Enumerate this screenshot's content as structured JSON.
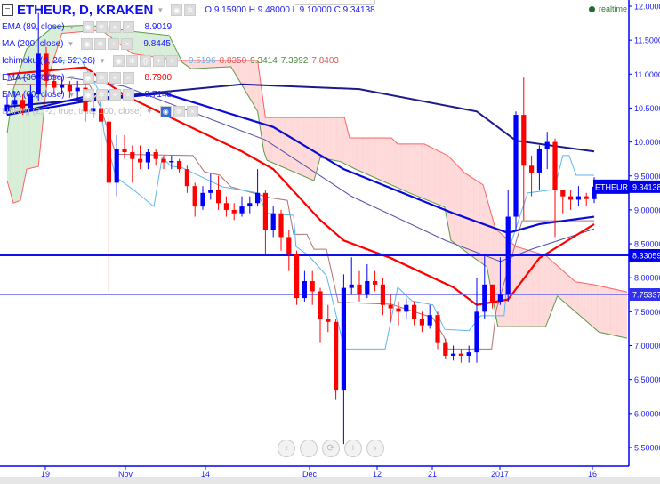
{
  "header": {
    "symbol_title": "ETHEUR, D, KRAKEN",
    "ohlc": "O 9.15900  H 9.48000  L 9.10000  C 9.34138",
    "realtime_label": "realtime"
  },
  "indicators": [
    {
      "label": "EMA (89, close)",
      "value": "8.9019",
      "color": "#1a1acc"
    },
    {
      "label": "MA (200, close)",
      "value": "9.8445",
      "color": "#1a1acc"
    },
    {
      "label": "Ichimoku (9, 26, 52, 26)",
      "values": [
        "9.5196",
        "8.8350",
        "9.3414",
        "7.3992",
        "7.8403"
      ],
      "value_colors": [
        "#5bb6f0",
        "#e05a5a",
        "#4a8a3a",
        "#4a8a3a",
        "#e05a5a"
      ]
    },
    {
      "label": "EMA (30, close)",
      "value": "8.7900",
      "color": "#ff0000"
    },
    {
      "label": "EMA (60, close)",
      "value": "8.7148",
      "color": "#1a1acc"
    },
    {
      "label": "LinReg (2, -2, true, true, 100, close)",
      "value": ""
    }
  ],
  "colors": {
    "up": "#0000ff",
    "down": "#ff0000",
    "axis": "#0000ff",
    "cloud_bull": "#d4ecd4",
    "cloud_bear": "#ffd6d6"
  },
  "y_axis": {
    "ticks": [
      "12.00000",
      "11.50000",
      "11.00000",
      "10.50000",
      "10.00000",
      "9.50000",
      "9.00000",
      "8.50000",
      "8.00000",
      "7.50000",
      "7.00000",
      "6.50000",
      "6.00000",
      "5.50000"
    ]
  },
  "x_axis": {
    "ticks": [
      "19",
      "Nov",
      "14",
      "Dec",
      "12",
      "21",
      "2017",
      "16"
    ]
  },
  "price_labels": [
    {
      "text": "9.34138",
      "tag": "ETHEUR",
      "price": 9.34138
    },
    {
      "text": "8.33059",
      "price": 8.33059
    },
    {
      "text": "7.75337",
      "price": 7.75337
    }
  ],
  "nav_buttons": {
    "left": "‹",
    "zoom_out": "−",
    "reset": "⟳",
    "zoom_in": "+",
    "right": "›"
  },
  "chart_data": {
    "type": "candlestick",
    "ylim": [
      5.3,
      12.1
    ],
    "open": [
      10.45,
      10.55,
      10.62,
      10.5,
      10.7,
      11.3,
      10.9,
      10.8,
      10.85,
      10.75,
      10.8,
      10.45,
      10.5,
      10.3,
      9.4,
      9.9,
      9.85,
      9.75,
      9.7,
      9.85,
      9.75,
      9.7,
      9.72,
      9.6,
      9.35,
      9.05,
      9.25,
      9.3,
      9.1,
      9.0,
      8.95,
      9.05,
      9.1,
      9.25,
      8.7,
      8.95,
      8.6,
      8.35,
      7.7,
      7.95,
      7.8,
      7.4,
      7.35,
      6.35,
      7.85,
      7.9,
      7.75,
      7.95,
      7.9,
      7.6,
      7.55,
      7.5,
      7.6,
      7.4,
      7.3,
      7.45,
      7.05,
      6.85,
      6.88,
      6.85,
      6.9,
      7.5,
      7.9,
      7.65,
      7.75,
      8.9,
      10.4,
      9.65,
      9.55,
      9.9,
      10.0,
      9.3,
      9.2,
      9.15,
      9.2,
      9.159
    ],
    "high": [
      10.7,
      10.75,
      10.7,
      10.85,
      11.9,
      11.4,
      11.0,
      10.95,
      10.9,
      10.9,
      10.85,
      10.6,
      10.55,
      10.35,
      10.1,
      10.1,
      9.95,
      9.95,
      9.9,
      9.9,
      9.8,
      9.8,
      9.75,
      9.65,
      9.4,
      9.35,
      9.55,
      9.5,
      9.2,
      9.1,
      9.2,
      9.2,
      9.6,
      9.3,
      9.05,
      9.0,
      8.7,
      8.4,
      8.1,
      8.1,
      7.85,
      7.6,
      7.4,
      8.05,
      8.3,
      8.1,
      8.2,
      8.1,
      8.0,
      7.75,
      7.65,
      7.7,
      7.65,
      7.5,
      7.6,
      7.5,
      7.1,
      7.0,
      6.95,
      7.0,
      8.0,
      8.35,
      7.9,
      8.3,
      9.3,
      10.45,
      10.95,
      9.8,
      9.95,
      10.15,
      10.05,
      9.3,
      9.3,
      9.35,
      9.25,
      9.48
    ],
    "low": [
      10.4,
      10.5,
      10.4,
      10.45,
      10.6,
      10.8,
      10.7,
      10.7,
      10.65,
      10.65,
      10.3,
      10.35,
      9.7,
      7.8,
      9.2,
      9.75,
      9.4,
      9.6,
      9.6,
      9.65,
      9.6,
      9.6,
      9.55,
      9.25,
      8.9,
      9.0,
      9.15,
      9.0,
      8.9,
      8.85,
      8.9,
      8.95,
      9.05,
      8.35,
      8.6,
      8.4,
      8.1,
      7.6,
      7.65,
      7.6,
      7.05,
      7.2,
      6.2,
      5.55,
      7.75,
      7.65,
      7.7,
      7.8,
      7.45,
      7.35,
      7.3,
      7.4,
      7.3,
      7.2,
      7.25,
      6.95,
      6.8,
      6.78,
      6.75,
      6.75,
      6.75,
      7.4,
      7.55,
      7.6,
      7.65,
      8.7,
      8.85,
      9.2,
      9.3,
      9.6,
      8.6,
      8.95,
      9.0,
      9.05,
      9.05,
      9.1
    ],
    "close": [
      10.55,
      10.62,
      10.5,
      10.7,
      11.3,
      10.9,
      10.8,
      10.85,
      10.75,
      10.8,
      10.45,
      10.5,
      10.3,
      9.4,
      9.9,
      9.85,
      9.75,
      9.7,
      9.85,
      9.75,
      9.7,
      9.72,
      9.6,
      9.35,
      9.05,
      9.25,
      9.3,
      9.1,
      9.0,
      8.95,
      9.05,
      9.1,
      9.25,
      8.7,
      8.95,
      8.6,
      8.35,
      7.7,
      7.95,
      7.8,
      7.4,
      7.35,
      6.35,
      7.85,
      7.9,
      7.75,
      7.95,
      7.9,
      7.6,
      7.55,
      7.5,
      7.6,
      7.4,
      7.3,
      7.45,
      7.05,
      6.85,
      6.88,
      6.85,
      6.9,
      7.5,
      7.9,
      7.65,
      7.75,
      8.9,
      10.4,
      9.65,
      9.55,
      9.9,
      10.0,
      9.3,
      9.2,
      9.15,
      9.2,
      9.16,
      9.34138
    ],
    "lines": {
      "ma200": {
        "color": "#1a1a8c",
        "points": [
          [
            0,
            10.52
          ],
          [
            30,
            10.85
          ],
          [
            45,
            10.78
          ],
          [
            60,
            10.45
          ],
          [
            65,
            10.02
          ],
          [
            75,
            9.86
          ]
        ]
      },
      "ema89": {
        "color": "#0a0ad8",
        "points": [
          [
            0,
            10.4
          ],
          [
            10,
            10.6
          ],
          [
            20,
            10.72
          ],
          [
            34,
            10.22
          ],
          [
            43,
            9.6
          ],
          [
            57,
            8.95
          ],
          [
            64,
            8.66
          ],
          [
            68,
            8.79
          ],
          [
            75,
            8.9
          ]
        ]
      },
      "ema60": {
        "color": "#5050a8",
        "points": [
          [
            0,
            10.9
          ],
          [
            5,
            11.0
          ],
          [
            15,
            10.82
          ],
          [
            33,
            10.03
          ],
          [
            44,
            9.2
          ],
          [
            56,
            8.55
          ],
          [
            63,
            8.24
          ],
          [
            67,
            8.42
          ],
          [
            75,
            8.72
          ]
        ]
      },
      "ema30": {
        "color": "#ff0000",
        "points": [
          [
            0,
            11.0
          ],
          [
            10,
            11.1
          ],
          [
            15,
            10.69
          ],
          [
            22,
            10.3
          ],
          [
            30,
            9.86
          ],
          [
            34,
            9.6
          ],
          [
            40,
            8.85
          ],
          [
            43,
            8.55
          ],
          [
            49,
            8.29
          ],
          [
            57,
            7.86
          ],
          [
            60,
            7.6
          ],
          [
            64,
            7.68
          ],
          [
            68,
            8.29
          ],
          [
            75,
            8.79
          ]
        ]
      },
      "linreg": {
        "color": "#0a0ad8",
        "points": [
          [
            0,
            10.4
          ],
          [
            13,
            10.75
          ]
        ]
      },
      "tenkan": {
        "color": "#5bb6f0",
        "points": [
          [
            5.9,
            11.17
          ],
          [
            9.3,
            11.24
          ],
          [
            11.6,
            10.78
          ],
          [
            12.4,
            10.13
          ],
          [
            13.9,
            9.48
          ],
          [
            16.1,
            9.3
          ],
          [
            18.75,
            9.05
          ],
          [
            19.8,
            9.77
          ],
          [
            21,
            9.64
          ],
          [
            22.2,
            9.63
          ],
          [
            27.5,
            9.34
          ],
          [
            32,
            9.25
          ],
          [
            33.2,
            8.95
          ],
          [
            36.6,
            8.92
          ],
          [
            36.9,
            8.46
          ],
          [
            38.5,
            8.33
          ],
          [
            40.8,
            8.03
          ],
          [
            43.1,
            6.95
          ],
          [
            48.3,
            6.95
          ],
          [
            49.9,
            7.86
          ],
          [
            51.7,
            7.66
          ],
          [
            54.4,
            7.6
          ],
          [
            55.9,
            7.24
          ],
          [
            59,
            7.22
          ],
          [
            60.5,
            7.44
          ],
          [
            63.5,
            7.44
          ],
          [
            64.2,
            8.45
          ],
          [
            66.5,
            9.25
          ],
          [
            69.9,
            9.3
          ],
          [
            71,
            9.8
          ],
          [
            71.8,
            9.8
          ],
          [
            72.7,
            9.51
          ],
          [
            75,
            9.51
          ]
        ]
      },
      "kijun": {
        "color": "#b07070",
        "points": [
          [
            0,
            10.85
          ],
          [
            10.5,
            10.85
          ],
          [
            11.9,
            10.52
          ],
          [
            13.9,
            9.82
          ],
          [
            23.75,
            9.8
          ],
          [
            25.2,
            9.56
          ],
          [
            27.2,
            9.51
          ],
          [
            28.6,
            9.34
          ],
          [
            32,
            9.23
          ],
          [
            33.5,
            9.18
          ],
          [
            35.8,
            9.14
          ],
          [
            36.6,
            8.64
          ],
          [
            38.3,
            8.64
          ],
          [
            39.2,
            8.42
          ],
          [
            40.8,
            8.42
          ],
          [
            42.3,
            7.64
          ],
          [
            49.1,
            7.61
          ],
          [
            54.4,
            7.41
          ],
          [
            55.9,
            7.11
          ],
          [
            56.3,
            6.95
          ],
          [
            61.9,
            6.95
          ],
          [
            62.5,
            7.53
          ],
          [
            65.8,
            8.84
          ],
          [
            75,
            8.84
          ]
        ]
      }
    },
    "cloud": {
      "span_a": {
        "color": "#5a9a4a",
        "points": [
          [
            0,
            10.13
          ],
          [
            0.8,
            10.78
          ],
          [
            2.5,
            11.37
          ],
          [
            5.9,
            11.7
          ],
          [
            10.5,
            11.72
          ],
          [
            16,
            11.63
          ],
          [
            20.7,
            11.57
          ],
          [
            22.4,
            11.17
          ],
          [
            23.5,
            11.08
          ],
          [
            28.6,
            11.11
          ],
          [
            32,
            10.45
          ],
          [
            32.8,
            9.86
          ],
          [
            33.2,
            9.73
          ],
          [
            39.2,
            9.43
          ],
          [
            40,
            9.77
          ],
          [
            42.6,
            9.71
          ],
          [
            44.5,
            9.6
          ],
          [
            51.4,
            9.25
          ],
          [
            55.9,
            9.04
          ],
          [
            56.7,
            8.55
          ],
          [
            59.7,
            8.29
          ],
          [
            61.3,
            8.16
          ],
          [
            62.7,
            7.28
          ],
          [
            68.8,
            7.28
          ],
          [
            70.3,
            7.73
          ],
          [
            72.2,
            7.54
          ],
          [
            75.6,
            7.2
          ],
          [
            79.2,
            7.11
          ]
        ]
      },
      "span_b": {
        "color": "#ff6060",
        "points": [
          [
            0,
            9.43
          ],
          [
            0.8,
            9.1
          ],
          [
            1.7,
            9.14
          ],
          [
            2.5,
            9.6
          ],
          [
            4,
            9.64
          ],
          [
            5.1,
            10.9
          ],
          [
            7,
            11.6
          ],
          [
            12,
            11.65
          ],
          [
            16,
            11.3
          ],
          [
            22,
            11.2
          ],
          [
            32,
            11.2
          ],
          [
            33,
            10.36
          ],
          [
            43.1,
            10.36
          ],
          [
            43.75,
            10.06
          ],
          [
            49.1,
            10.06
          ],
          [
            49.9,
            9.97
          ],
          [
            53.3,
            9.97
          ],
          [
            56.3,
            9.8
          ],
          [
            58.5,
            9.54
          ],
          [
            60.8,
            9.37
          ],
          [
            62.4,
            8.72
          ],
          [
            65,
            8.46
          ],
          [
            68.8,
            8.33
          ],
          [
            72.6,
            7.94
          ],
          [
            74.9,
            7.9
          ],
          [
            79.2,
            7.79
          ]
        ]
      }
    },
    "horizontal_lines": [
      8.33059,
      7.75337
    ]
  }
}
